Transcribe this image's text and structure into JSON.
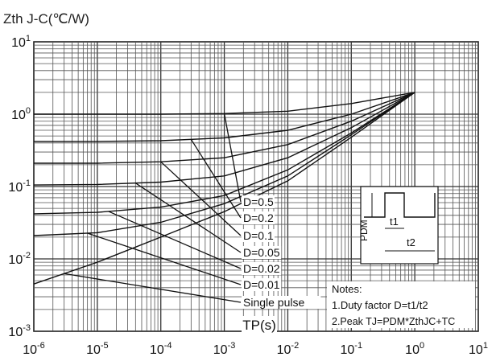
{
  "chart_data": {
    "type": "line",
    "ylabel": "Zth J-C(℃/W)",
    "xlabel": "TP(s)",
    "x_scale": "log",
    "y_scale": "log",
    "xlim": [
      1e-06,
      10
    ],
    "ylim": [
      0.001,
      10
    ],
    "grid": true,
    "x_ticks": [
      "10-6",
      "10-5",
      "10-4",
      "10-3",
      "10-2",
      "10-1",
      "100",
      "101"
    ],
    "y_ticks": [
      "10-3",
      "10-2",
      "10-1",
      "100",
      "101"
    ],
    "series": [
      {
        "name": "D=0.5",
        "x": [
          1e-06,
          1e-05,
          0.0001,
          0.001,
          0.01,
          0.1,
          1
        ],
        "y": [
          1.0,
          1.0,
          1.0,
          1.02,
          1.1,
          1.4,
          2.0
        ]
      },
      {
        "name": "D=0.2",
        "x": [
          1e-06,
          1e-05,
          0.0001,
          0.001,
          0.01,
          0.1,
          1
        ],
        "y": [
          0.42,
          0.42,
          0.43,
          0.47,
          0.6,
          1.0,
          2.0
        ]
      },
      {
        "name": "D=0.1",
        "x": [
          1e-06,
          1e-05,
          0.0001,
          0.001,
          0.01,
          0.1,
          1
        ],
        "y": [
          0.21,
          0.21,
          0.22,
          0.25,
          0.38,
          0.8,
          2.0
        ]
      },
      {
        "name": "D=0.05",
        "x": [
          1e-06,
          1e-05,
          0.0001,
          0.001,
          0.01,
          0.1,
          1
        ],
        "y": [
          0.105,
          0.107,
          0.115,
          0.14,
          0.25,
          0.65,
          2.0
        ]
      },
      {
        "name": "D=0.02",
        "x": [
          1e-06,
          1e-05,
          0.0001,
          0.001,
          0.01,
          0.1,
          1
        ],
        "y": [
          0.042,
          0.044,
          0.052,
          0.075,
          0.17,
          0.55,
          2.0
        ]
      },
      {
        "name": "D=0.01",
        "x": [
          1e-06,
          1e-05,
          0.0001,
          0.001,
          0.01,
          0.1,
          1
        ],
        "y": [
          0.021,
          0.023,
          0.032,
          0.058,
          0.14,
          0.52,
          2.0
        ]
      },
      {
        "name": "Single pulse",
        "x": [
          1e-06,
          1e-05,
          0.0001,
          0.001,
          0.01,
          0.1,
          1
        ],
        "y": [
          0.0045,
          0.009,
          0.02,
          0.045,
          0.12,
          0.48,
          2.0
        ]
      }
    ],
    "legend_labels": [
      "D=0.5",
      "D=0.2",
      "D=0.1",
      "D=0.05",
      "D=0.02",
      "D=0.01",
      "Single pulse"
    ],
    "notes": {
      "title": "Notes:",
      "line1": "1.Duty factor D=t1/t2",
      "line2": "2.Peak TJ=PDM*ZthJC+TC"
    },
    "inset": {
      "pdm": "PDM",
      "t1": "t1",
      "t2": "t2"
    }
  }
}
